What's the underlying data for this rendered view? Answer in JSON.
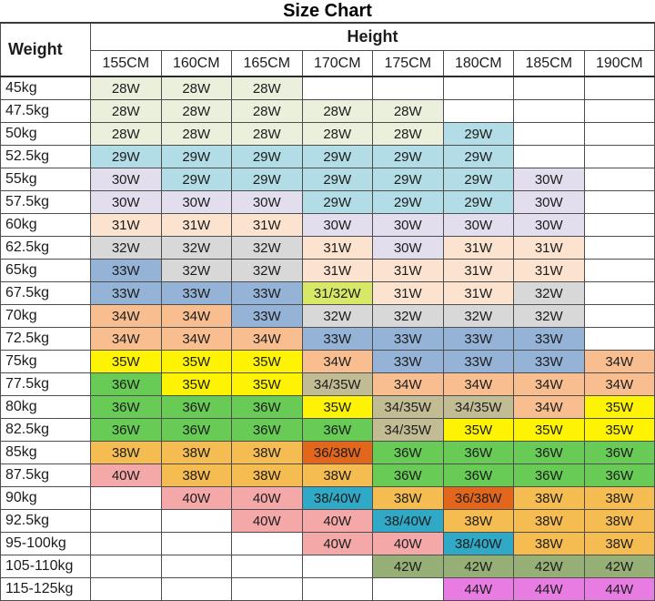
{
  "chart_data": {
    "type": "table",
    "title": "Size Chart",
    "row_header": "Weight",
    "column_header": "Height",
    "columns": [
      "155CM",
      "160CM",
      "165CM",
      "170CM",
      "175CM",
      "180CM",
      "185CM",
      "190CM"
    ],
    "rows": [
      {
        "label": "45kg",
        "cells": [
          "28W",
          "28W",
          "28W",
          "",
          "",
          "",
          "",
          ""
        ]
      },
      {
        "label": "47.5kg",
        "cells": [
          "28W",
          "28W",
          "28W",
          "28W",
          "28W",
          "",
          "",
          ""
        ]
      },
      {
        "label": "50kg",
        "cells": [
          "28W",
          "28W",
          "28W",
          "28W",
          "28W",
          "29W",
          "",
          ""
        ]
      },
      {
        "label": "52.5kg",
        "cells": [
          "29W",
          "29W",
          "29W",
          "29W",
          "29W",
          "29W",
          "",
          ""
        ]
      },
      {
        "label": "55kg",
        "cells": [
          "30W",
          "29W",
          "29W",
          "29W",
          "29W",
          "29W",
          "30W",
          ""
        ]
      },
      {
        "label": "57.5kg",
        "cells": [
          "30W",
          "30W",
          "30W",
          "29W",
          "29W",
          "29W",
          "30W",
          ""
        ]
      },
      {
        "label": "60kg",
        "cells": [
          "31W",
          "31W",
          "31W",
          "30W",
          "30W",
          "30W",
          "30W",
          ""
        ]
      },
      {
        "label": "62.5kg",
        "cells": [
          "32W",
          "32W",
          "32W",
          "31W",
          "30W",
          "31W",
          "31W",
          ""
        ]
      },
      {
        "label": "65kg",
        "cells": [
          "33W",
          "32W",
          "32W",
          "31W",
          "31W",
          "31W",
          "31W",
          ""
        ]
      },
      {
        "label": "67.5kg",
        "cells": [
          "33W",
          "33W",
          "33W",
          "31/32W",
          "31W",
          "31W",
          "32W",
          ""
        ]
      },
      {
        "label": "70kg",
        "cells": [
          "34W",
          "34W",
          "33W",
          "32W",
          "32W",
          "32W",
          "32W",
          ""
        ]
      },
      {
        "label": "72.5kg",
        "cells": [
          "34W",
          "34W",
          "34W",
          "33W",
          "33W",
          "33W",
          "33W",
          ""
        ]
      },
      {
        "label": "75kg",
        "cells": [
          "35W",
          "35W",
          "35W",
          "34W",
          "33W",
          "33W",
          "33W",
          "34W"
        ]
      },
      {
        "label": "77.5kg",
        "cells": [
          "36W",
          "35W",
          "35W",
          "34/35W",
          "34W",
          "34W",
          "34W",
          "34W"
        ]
      },
      {
        "label": "80kg",
        "cells": [
          "36W",
          "36W",
          "36W",
          "35W",
          "34/35W",
          "34/35W",
          "34W",
          "35W"
        ]
      },
      {
        "label": "82.5kg",
        "cells": [
          "36W",
          "36W",
          "36W",
          "36W",
          "34/35W",
          "35W",
          "35W",
          "35W"
        ]
      },
      {
        "label": "85kg",
        "cells": [
          "38W",
          "38W",
          "38W",
          "36/38W",
          "36W",
          "36W",
          "36W",
          "36W"
        ]
      },
      {
        "label": "87.5kg",
        "cells": [
          "40W",
          "38W",
          "38W",
          "38W",
          "36W",
          "36W",
          "36W",
          "36W"
        ]
      },
      {
        "label": "90kg",
        "cells": [
          "",
          "40W",
          "40W",
          "38/40W",
          "38W",
          "36/38W",
          "38W",
          "38W"
        ]
      },
      {
        "label": "92.5kg",
        "cells": [
          "",
          "",
          "40W",
          "40W",
          "38/40W",
          "38W",
          "38W",
          "38W"
        ]
      },
      {
        "label": "95-100kg",
        "cells": [
          "",
          "",
          "",
          "40W",
          "40W",
          "38/40W",
          "38W",
          "38W"
        ]
      },
      {
        "label": "105-110kg",
        "cells": [
          "",
          "",
          "",
          "",
          "42W",
          "42W",
          "42W",
          "42W"
        ]
      },
      {
        "label": "115-125kg",
        "cells": [
          "",
          "",
          "",
          "",
          "",
          "44W",
          "44W",
          "44W"
        ]
      }
    ],
    "cell_color_map": {
      "28W": "#EAF0DB",
      "29W": "#B2DDE6",
      "30W": "#E2DEED",
      "31W": "#FBE3D0",
      "31/32W": "#D8E766",
      "32W": "#D8D8D8",
      "33W": "#95B3D7",
      "34W": "#F8BE90",
      "34/35W": "#C2BC94",
      "35W": "#FDF303",
      "36W": "#67CB55",
      "36/38W": "#E2661C",
      "38W": "#F5BC51",
      "38/40W": "#2FA9C6",
      "40W": "#F5A8A8",
      "42W": "#95AF76",
      "44W": "#E97CE2",
      "": "#FFFFFF"
    }
  }
}
